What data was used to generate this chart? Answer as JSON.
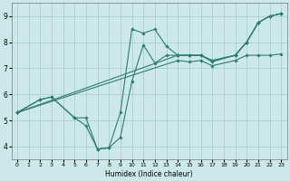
{
  "xlabel": "Humidex (Indice chaleur)",
  "ylabel": "",
  "background_color": "#cce8e8",
  "grid_color": "#aacfcf",
  "line_color": "#2e7d72",
  "xlim": [
    -0.5,
    23.5
  ],
  "ylim": [
    3.5,
    9.5
  ],
  "xticks": [
    0,
    1,
    2,
    3,
    4,
    5,
    6,
    7,
    8,
    9,
    10,
    11,
    12,
    13,
    14,
    15,
    16,
    17,
    18,
    19,
    20,
    21,
    22,
    23
  ],
  "yticks": [
    4,
    5,
    6,
    7,
    8,
    9
  ],
  "series": [
    {
      "x": [
        0,
        2,
        3,
        5,
        6,
        7,
        8,
        9,
        10,
        11,
        12,
        13,
        14,
        15,
        16,
        17,
        19,
        20,
        21,
        22,
        23
      ],
      "y": [
        5.3,
        5.8,
        5.9,
        5.1,
        5.1,
        3.9,
        3.95,
        5.3,
        8.5,
        8.35,
        8.5,
        7.85,
        7.5,
        7.5,
        7.5,
        7.3,
        7.5,
        8.0,
        8.75,
        9.0,
        9.1
      ]
    },
    {
      "x": [
        0,
        2,
        3,
        5,
        6,
        7,
        8,
        9,
        10,
        11,
        12,
        13,
        14,
        15,
        16,
        17,
        19,
        20,
        21,
        22,
        23
      ],
      "y": [
        5.3,
        5.8,
        5.9,
        5.1,
        4.8,
        3.9,
        3.95,
        4.35,
        6.5,
        7.9,
        7.2,
        7.5,
        7.5,
        7.5,
        7.5,
        7.25,
        7.5,
        8.0,
        8.75,
        9.0,
        9.1
      ]
    },
    {
      "x": [
        0,
        14,
        15,
        16,
        17,
        19,
        20,
        21,
        22,
        23
      ],
      "y": [
        5.3,
        7.5,
        7.5,
        7.5,
        7.3,
        7.5,
        8.0,
        8.75,
        9.0,
        9.1
      ]
    },
    {
      "x": [
        0,
        14,
        15,
        16,
        17,
        19,
        20,
        21,
        22,
        23
      ],
      "y": [
        5.3,
        7.3,
        7.25,
        7.3,
        7.1,
        7.3,
        7.5,
        7.5,
        7.5,
        7.55
      ]
    }
  ]
}
